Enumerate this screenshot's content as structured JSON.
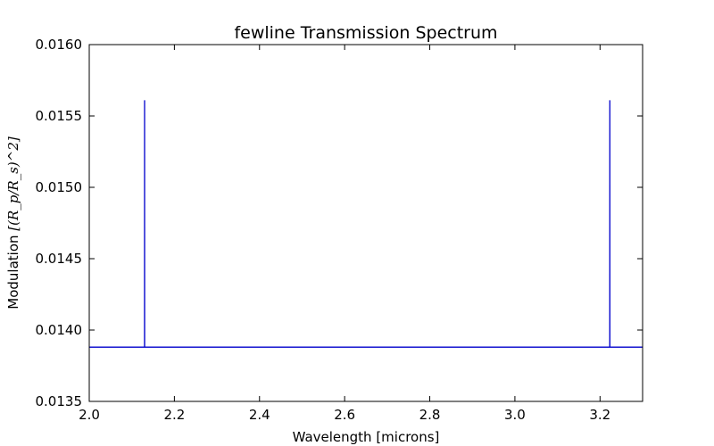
{
  "chart_data": {
    "type": "line",
    "title": "fewline Transmission Spectrum",
    "xlabel": "Wavelength  [microns]",
    "ylabel": {
      "text": "Modulation  ",
      "math": "[(R_p/R_s)^2]"
    },
    "xlim": [
      2.0,
      3.3
    ],
    "ylim": [
      0.0135,
      0.016
    ],
    "xticks": [
      "2.0",
      "2.2",
      "2.4",
      "2.6",
      "2.8",
      "3.0",
      "3.2"
    ],
    "yticks": [
      "0.0135",
      "0.0140",
      "0.0145",
      "0.0150",
      "0.0155",
      "0.0160"
    ],
    "grid": false,
    "series": [
      {
        "color": "#0000cc",
        "x": [
          2.0,
          2.1299,
          2.13,
          2.1301,
          2.2858,
          2.2862,
          3.2229,
          3.223,
          3.2231,
          3.3
        ],
        "y": [
          0.01388,
          0.01388,
          0.01561,
          0.01388,
          0.01388,
          0.01388,
          0.01388,
          0.01561,
          0.01388,
          0.01388
        ]
      }
    ]
  }
}
